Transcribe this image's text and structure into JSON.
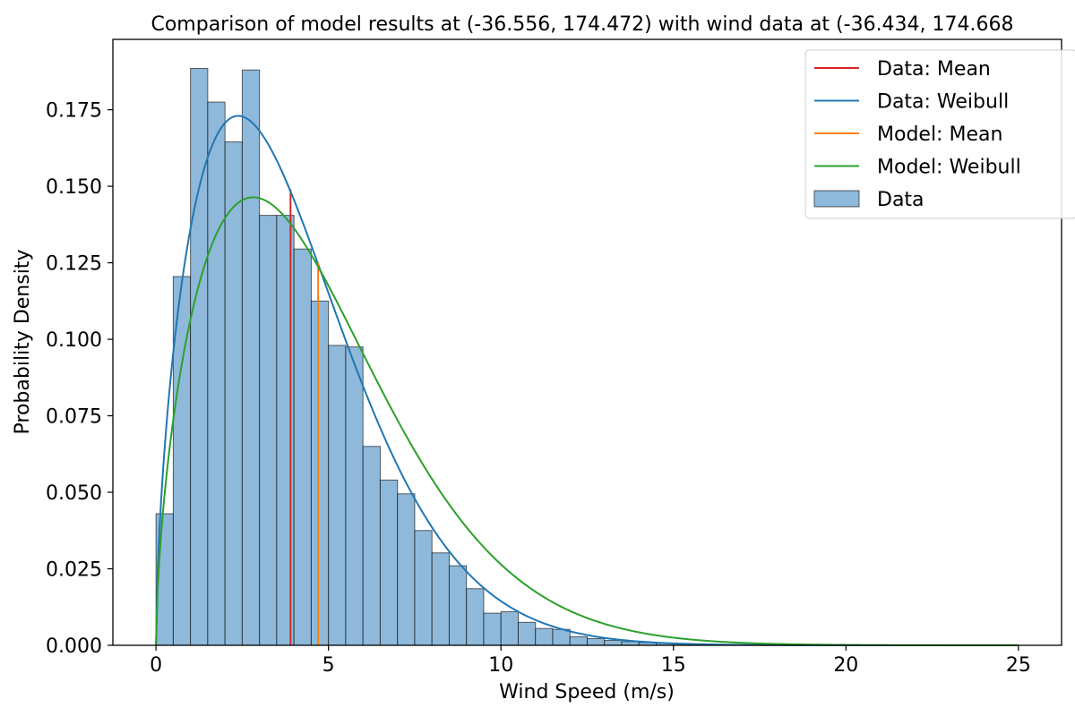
{
  "chart_data": {
    "type": "histogram",
    "title": "Comparison of model results at (-36.556, 174.472) with wind data at (-36.434, 174.668",
    "xlabel": "Wind Speed (m/s)",
    "ylabel": "Probability Density",
    "xlim": [
      -1.25,
      26.25
    ],
    "ylim": [
      0,
      0.198
    ],
    "grid": false,
    "legend_position": "top-right",
    "x_ticks": [
      0,
      5,
      10,
      15,
      20,
      25
    ],
    "y_ticks": [
      0.0,
      0.025,
      0.05,
      0.075,
      0.1,
      0.125,
      0.15,
      0.175
    ],
    "x_tick_labels": [
      "0",
      "5",
      "10",
      "15",
      "20",
      "25"
    ],
    "y_tick_labels": [
      "0.000",
      "0.025",
      "0.050",
      "0.075",
      "0.100",
      "0.125",
      "0.150",
      "0.175"
    ],
    "histogram": {
      "name": "Data",
      "bin_start": 0,
      "bin_width": 0.5,
      "values": [
        0.043,
        0.1205,
        0.1885,
        0.1775,
        0.1645,
        0.188,
        0.1405,
        0.1405,
        0.1295,
        0.1125,
        0.098,
        0.0975,
        0.065,
        0.054,
        0.0495,
        0.0375,
        0.0302,
        0.026,
        0.0185,
        0.0105,
        0.011,
        0.0075,
        0.0055,
        0.0052,
        0.0028,
        0.0022,
        0.0016,
        0.0012,
        0.0009,
        0.0007,
        0.0005,
        0.0004,
        0.0003,
        0.0002,
        0.00015,
        0.0001,
        8e-05,
        5e-05,
        4e-05,
        3e-05
      ],
      "color": "#8fb9da",
      "edge_color": "#000000"
    },
    "series": [
      {
        "name": "Data: Mean",
        "kind": "vline",
        "x": 3.9,
        "y_top": 0.149,
        "color": "#d62728"
      },
      {
        "name": "Data: Weibull",
        "kind": "weibull",
        "k": 1.6,
        "lambda": 4.4,
        "x_range": [
          0,
          25
        ],
        "color": "#1f77b4"
      },
      {
        "name": "Model: Mean",
        "kind": "vline",
        "x": 4.7,
        "y_top": 0.125,
        "color": "#ff7f0e"
      },
      {
        "name": "Model: Weibull",
        "kind": "weibull",
        "k": 1.6,
        "lambda": 5.2,
        "x_range": [
          0,
          25
        ],
        "color": "#2ca02c"
      }
    ]
  }
}
